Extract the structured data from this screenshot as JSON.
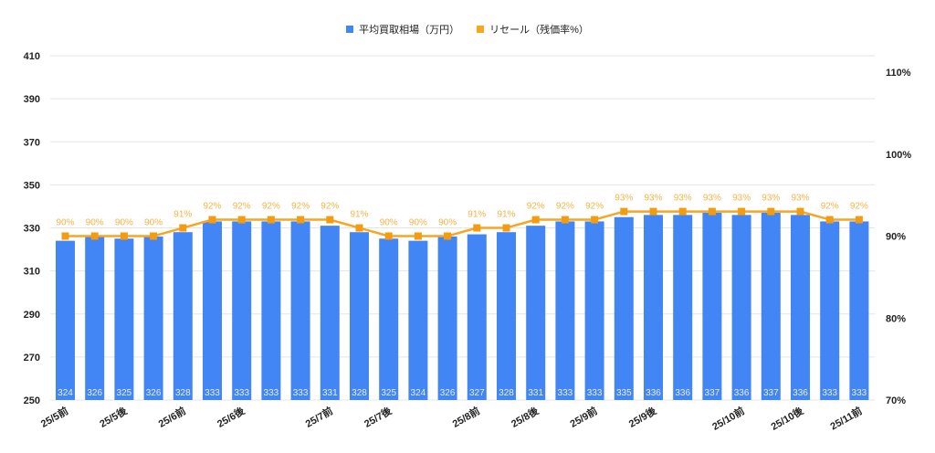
{
  "legend": {
    "bar_label": "平均買取相場（万円）",
    "line_label": "リセール（残価率%）"
  },
  "colors": {
    "bar": "#4285f4",
    "line": "#f5a623",
    "line_marker": "#f39c12",
    "line_label": "#f7b347",
    "bar_label": "#e6efff",
    "grid": "#e5e5e5",
    "axis_text": "#222222"
  },
  "chart_data": {
    "type": "bar",
    "title": "",
    "categories": [
      "25/5前",
      "",
      "25/5後",
      "",
      "25/6前",
      "",
      "25/6後",
      "",
      "",
      "25/7前",
      "",
      "25/7後",
      "",
      "",
      "25/8前",
      "",
      "25/8後",
      "",
      "25/9前",
      "",
      "25/9後",
      "",
      "",
      "25/10前",
      "",
      "25/10後",
      "",
      "25/11前"
    ],
    "x_tick_labels": [
      {
        "index": 0,
        "label": "25/5前"
      },
      {
        "index": 2,
        "label": "25/5後"
      },
      {
        "index": 4,
        "label": "25/6前"
      },
      {
        "index": 6,
        "label": "25/6後"
      },
      {
        "index": 9,
        "label": "25/7前"
      },
      {
        "index": 11,
        "label": "25/7後"
      },
      {
        "index": 14,
        "label": "25/8前"
      },
      {
        "index": 16,
        "label": "25/8後"
      },
      {
        "index": 18,
        "label": "25/9前"
      },
      {
        "index": 20,
        "label": "25/9後"
      },
      {
        "index": 23,
        "label": "25/10前"
      },
      {
        "index": 25,
        "label": "25/10後"
      },
      {
        "index": 27,
        "label": "25/11前"
      }
    ],
    "series": [
      {
        "name": "平均買取相場（万円）",
        "type": "bar",
        "axis": "left",
        "values": [
          324,
          326,
          325,
          326,
          328,
          333,
          333,
          333,
          333,
          331,
          328,
          325,
          324,
          326,
          327,
          328,
          331,
          333,
          333,
          335,
          336,
          336,
          337,
          336,
          337,
          336,
          333,
          333
        ]
      },
      {
        "name": "リセール（残価率%）",
        "type": "line",
        "axis": "right",
        "values": [
          90,
          90,
          90,
          90,
          91,
          92,
          92,
          92,
          92,
          92,
          91,
          90,
          90,
          90,
          91,
          91,
          92,
          92,
          92,
          93,
          93,
          93,
          93,
          93,
          93,
          93,
          92,
          92
        ]
      }
    ],
    "left_axis": {
      "ylim": [
        250,
        410
      ],
      "ticks": [
        250,
        270,
        290,
        310,
        330,
        350,
        370,
        390,
        410
      ]
    },
    "right_axis": {
      "ylim": [
        70,
        110
      ],
      "ticks": [
        "70%",
        "80%",
        "90%",
        "100%",
        "110%"
      ]
    },
    "xlabel": "",
    "ylabel": "",
    "grid": true,
    "legend_position": "top"
  }
}
